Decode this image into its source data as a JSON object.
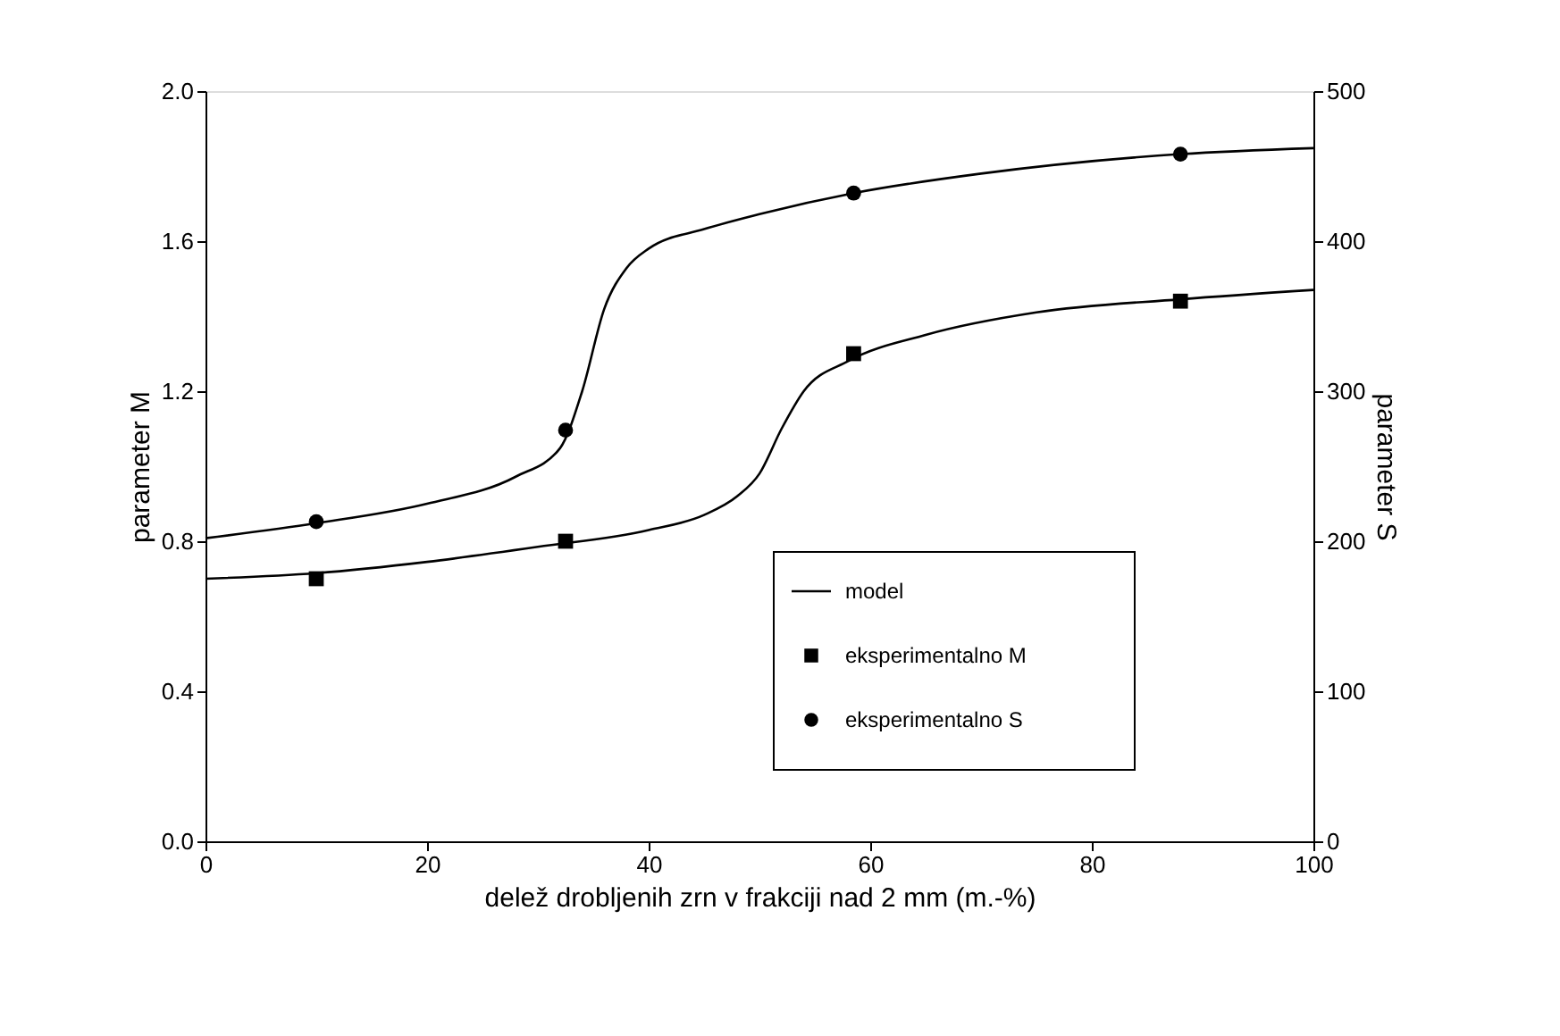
{
  "chart_data": {
    "type": "line",
    "xlabel": "delež drobljenih zrn v frakciji nad 2 mm (m.-%)",
    "ylabel": "parameter M",
    "y2label": "parameter S",
    "xlim": [
      0,
      100
    ],
    "xticks": [
      0,
      20,
      40,
      60,
      80,
      100
    ],
    "ylim": [
      0,
      2
    ],
    "yticks": [
      {
        "value": 0,
        "label": "0.0"
      },
      {
        "value": 0.4,
        "label": "0.4"
      },
      {
        "value": 0.8,
        "label": "0.8"
      },
      {
        "value": 1.2,
        "label": "1.2"
      },
      {
        "value": 1.6,
        "label": "1.6"
      },
      {
        "value": 2,
        "label": "2.0"
      }
    ],
    "y2lim": [
      0,
      500
    ],
    "y2ticks": [
      0,
      100,
      200,
      300,
      400,
      500
    ],
    "grid": false,
    "legend": "bottom right",
    "series": [
      {
        "name": "model",
        "color": "#000000",
        "marker": "none",
        "x": [
          0,
          10,
          20,
          30,
          40,
          45,
          48,
          50,
          52,
          54,
          58,
          65,
          75,
          88,
          100
        ],
        "values": [
          0.7,
          0.715,
          0.745,
          0.785,
          0.83,
          0.87,
          0.92,
          0.98,
          1.1,
          1.2,
          1.28,
          1.35,
          1.41,
          1.445,
          1.47
        ]
      },
      {
        "color": "#000000",
        "marker": "none",
        "axis": "y2",
        "x": [
          0,
          10,
          20,
          28,
          32,
          34,
          36,
          38,
          40,
          45,
          50,
          58.5,
          70,
          88,
          100
        ],
        "values": [
          202,
          212,
          225,
          243,
          262,
          300,
          355,
          382,
          395,
          408,
          418,
          432,
          445,
          458,
          462
        ]
      },
      {
        "name": "eksperimentalno M",
        "type": "scatter",
        "color": "#000000",
        "marker": "square",
        "x": [
          10,
          32.5,
          58.5,
          88
        ],
        "values": [
          0.7,
          0.8,
          1.3,
          1.44
        ]
      },
      {
        "name": "eksperimentalno S",
        "type": "scatter",
        "color": "#000000",
        "marker": "circle",
        "axis": "y2",
        "x": [
          10,
          32.5,
          58.5,
          88
        ],
        "values": [
          213,
          274,
          432,
          458
        ]
      }
    ]
  }
}
